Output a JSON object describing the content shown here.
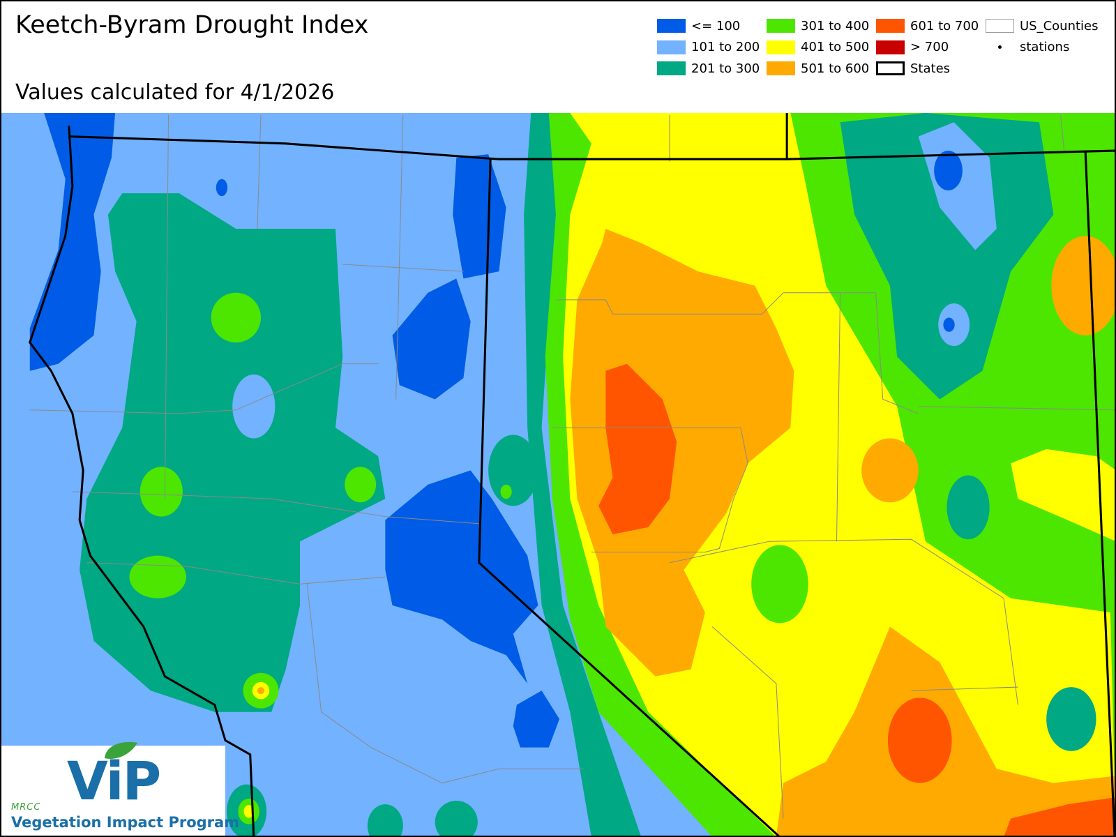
{
  "title": "Keetch-Byram Drought Index",
  "subtitle": "Values calculated for 4/1/2026",
  "legend": [
    {
      "label": "<= 100",
      "color": "#005ce6",
      "symbol": "fill"
    },
    {
      "label": "101 to 200",
      "color": "#73b2ff",
      "symbol": "fill"
    },
    {
      "label": "201 to 300",
      "color": "#00a884",
      "symbol": "fill"
    },
    {
      "label": "301 to 400",
      "color": "#4ce600",
      "symbol": "fill"
    },
    {
      "label": "401 to 500",
      "color": "#ffff00",
      "symbol": "fill"
    },
    {
      "label": "501 to 600",
      "color": "#ffaa00",
      "symbol": "fill"
    },
    {
      "label": "601 to 700",
      "color": "#ff5500",
      "symbol": "fill"
    },
    {
      "label": "> 700",
      "color": "#c80000",
      "symbol": "fill"
    },
    {
      "label": "States",
      "color": "#000000",
      "symbol": "outline"
    },
    {
      "label": "US_Counties",
      "color": "#9c9c9c",
      "symbol": "outline"
    },
    {
      "label": "stations",
      "color": "#000000",
      "symbol": "dot"
    }
  ],
  "logo": {
    "org": "MRCC",
    "name": "ViP",
    "program": "Vegetation Impact Program"
  }
}
